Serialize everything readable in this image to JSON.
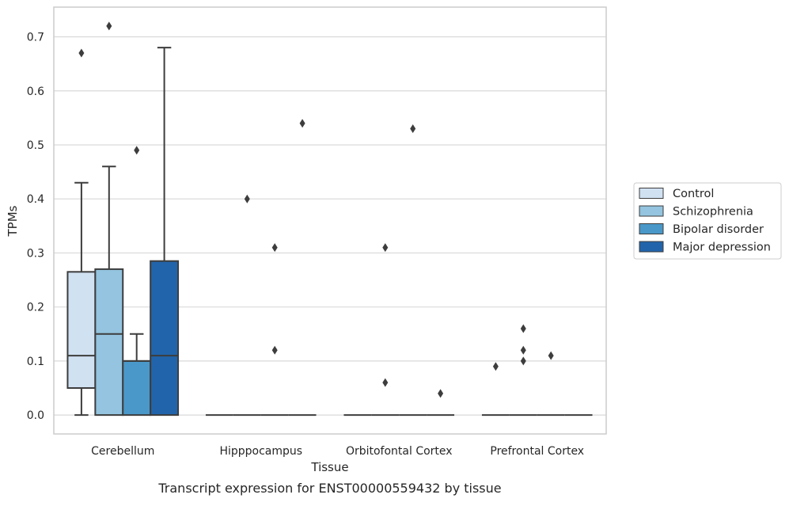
{
  "chart_data": {
    "type": "box",
    "caption": "Transcript expression for ENST00000559432 by tissue",
    "xlabel": "Tissue",
    "ylabel": "TPMs",
    "ylim": [
      -0.035,
      0.755
    ],
    "yticks": [
      "0.0",
      "0.1",
      "0.2",
      "0.3",
      "0.4",
      "0.5",
      "0.6",
      "0.7"
    ],
    "grid": true,
    "legend_position": "right",
    "categories": [
      "Cerebellum",
      "Hipppocampus",
      "Orbitofontal Cortex",
      "Prefrontal Cortex"
    ],
    "series": [
      {
        "name": "Control",
        "color": "#d0e1f2",
        "boxes": [
          {
            "whisker_low": 0.0,
            "q1": 0.05,
            "median": 0.11,
            "q3": 0.265,
            "whisker_high": 0.43,
            "outliers": [
              0.67
            ]
          },
          {
            "whisker_low": 0.0,
            "q1": 0.0,
            "median": 0.0,
            "q3": 0.0,
            "whisker_high": 0.0,
            "outliers": []
          },
          {
            "whisker_low": 0.0,
            "q1": 0.0,
            "median": 0.0,
            "q3": 0.0,
            "whisker_high": 0.0,
            "outliers": []
          },
          {
            "whisker_low": 0.0,
            "q1": 0.0,
            "median": 0.0,
            "q3": 0.0,
            "whisker_high": 0.0,
            "outliers": [
              0.09
            ]
          }
        ]
      },
      {
        "name": "Schizophrenia",
        "color": "#94c4df",
        "boxes": [
          {
            "whisker_low": 0.0,
            "q1": 0.0,
            "median": 0.15,
            "q3": 0.27,
            "whisker_high": 0.46,
            "outliers": [
              0.72
            ]
          },
          {
            "whisker_low": 0.0,
            "q1": 0.0,
            "median": 0.0,
            "q3": 0.0,
            "whisker_high": 0.0,
            "outliers": [
              0.4
            ]
          },
          {
            "whisker_low": 0.0,
            "q1": 0.0,
            "median": 0.0,
            "q3": 0.0,
            "whisker_high": 0.0,
            "outliers": [
              0.31,
              0.06
            ]
          },
          {
            "whisker_low": 0.0,
            "q1": 0.0,
            "median": 0.0,
            "q3": 0.0,
            "whisker_high": 0.0,
            "outliers": [
              0.16,
              0.12,
              0.1
            ]
          }
        ]
      },
      {
        "name": "Bipolar disorder",
        "color": "#4a98c9",
        "boxes": [
          {
            "whisker_low": 0.0,
            "q1": 0.0,
            "median": 0.1,
            "q3": 0.1,
            "whisker_high": 0.15,
            "outliers": [
              0.49
            ]
          },
          {
            "whisker_low": 0.0,
            "q1": 0.0,
            "median": 0.0,
            "q3": 0.0,
            "whisker_high": 0.0,
            "outliers": [
              0.31,
              0.12
            ]
          },
          {
            "whisker_low": 0.0,
            "q1": 0.0,
            "median": 0.0,
            "q3": 0.0,
            "whisker_high": 0.0,
            "outliers": [
              0.53
            ]
          },
          {
            "whisker_low": 0.0,
            "q1": 0.0,
            "median": 0.0,
            "q3": 0.0,
            "whisker_high": 0.0,
            "outliers": [
              0.11
            ]
          }
        ]
      },
      {
        "name": "Major depression",
        "color": "#2164ab",
        "boxes": [
          {
            "whisker_low": 0.0,
            "q1": 0.0,
            "median": 0.11,
            "q3": 0.285,
            "whisker_high": 0.68,
            "outliers": []
          },
          {
            "whisker_low": 0.0,
            "q1": 0.0,
            "median": 0.0,
            "q3": 0.0,
            "whisker_high": 0.0,
            "outliers": [
              0.54
            ]
          },
          {
            "whisker_low": 0.0,
            "q1": 0.0,
            "median": 0.0,
            "q3": 0.0,
            "whisker_high": 0.0,
            "outliers": [
              0.04
            ]
          },
          {
            "whisker_low": 0.0,
            "q1": 0.0,
            "median": 0.0,
            "q3": 0.0,
            "whisker_high": 0.0,
            "outliers": []
          }
        ]
      }
    ]
  }
}
